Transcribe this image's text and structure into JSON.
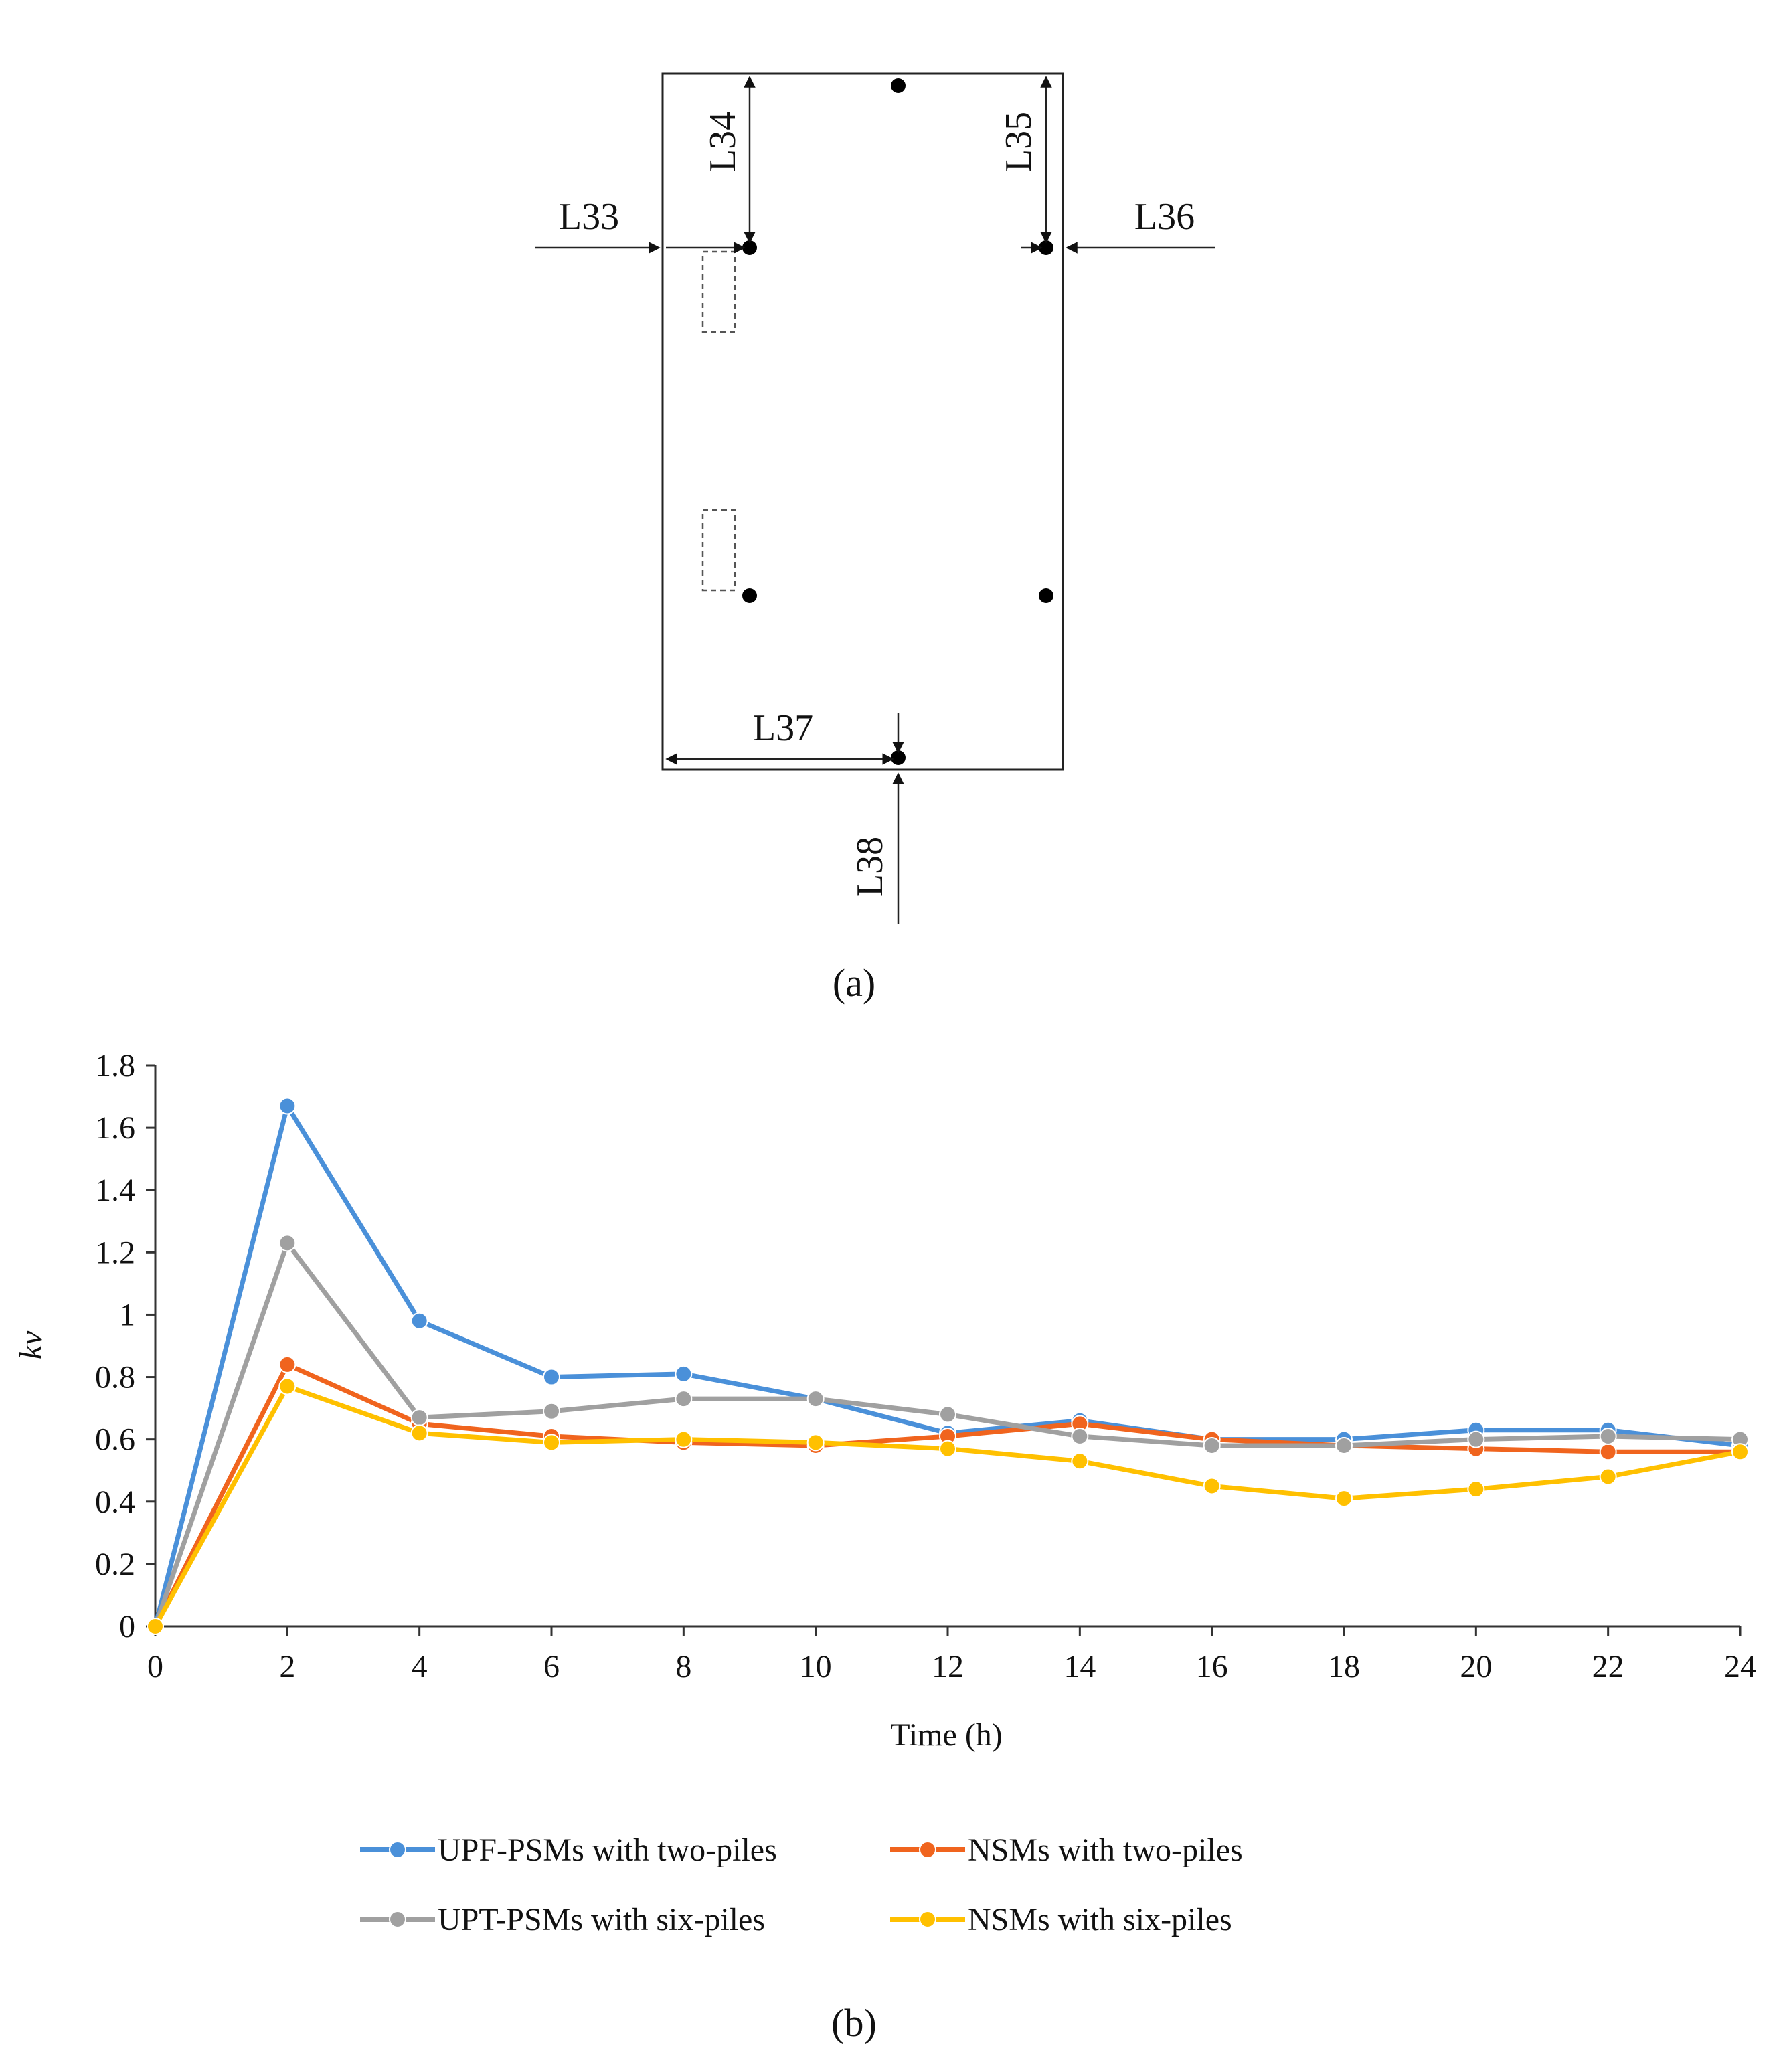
{
  "diagram_a": {
    "labels": [
      "L33",
      "L34",
      "L35",
      "L36",
      "L37",
      "L38"
    ],
    "caption": "(a)"
  },
  "chart_data": {
    "type": "line",
    "title": "",
    "xlabel": "Time (h)",
    "ylabel": "kv",
    "x": [
      0,
      2,
      4,
      6,
      8,
      10,
      12,
      14,
      16,
      18,
      20,
      22,
      24
    ],
    "xlim": [
      0,
      24
    ],
    "ylim": [
      0,
      1.8
    ],
    "xticks": [
      "0",
      "2",
      "4",
      "6",
      "8",
      "10",
      "12",
      "14",
      "16",
      "18",
      "20",
      "22",
      "24"
    ],
    "yticks": [
      "0",
      "0.2",
      "0.4",
      "0.6",
      "0.8",
      "1",
      "1.2",
      "1.4",
      "1.6",
      "1.8"
    ],
    "legend_position": "bottom",
    "series": [
      {
        "name": "UPF-PSMs with two-piles",
        "color": "#4A90D9",
        "values": [
          0,
          1.67,
          0.98,
          0.8,
          0.81,
          0.73,
          0.62,
          0.66,
          0.6,
          0.6,
          0.63,
          0.63,
          0.58
        ]
      },
      {
        "name": "NSMs with two-piles",
        "color": "#F0641E",
        "values": [
          0,
          0.84,
          0.65,
          0.61,
          0.59,
          0.58,
          0.61,
          0.65,
          0.6,
          0.58,
          0.57,
          0.56,
          0.56
        ]
      },
      {
        "name": "UPT-PSMs with six-piles",
        "color": "#A0A0A0",
        "values": [
          0,
          1.23,
          0.67,
          0.69,
          0.73,
          0.73,
          0.68,
          0.61,
          0.58,
          0.58,
          0.6,
          0.61,
          0.6
        ]
      },
      {
        "name": "NSMs with six-piles",
        "color": "#FFC000",
        "values": [
          0,
          0.77,
          0.62,
          0.59,
          0.6,
          0.59,
          0.57,
          0.53,
          0.45,
          0.41,
          0.44,
          0.48,
          0.56
        ]
      }
    ],
    "caption": "(b)"
  }
}
